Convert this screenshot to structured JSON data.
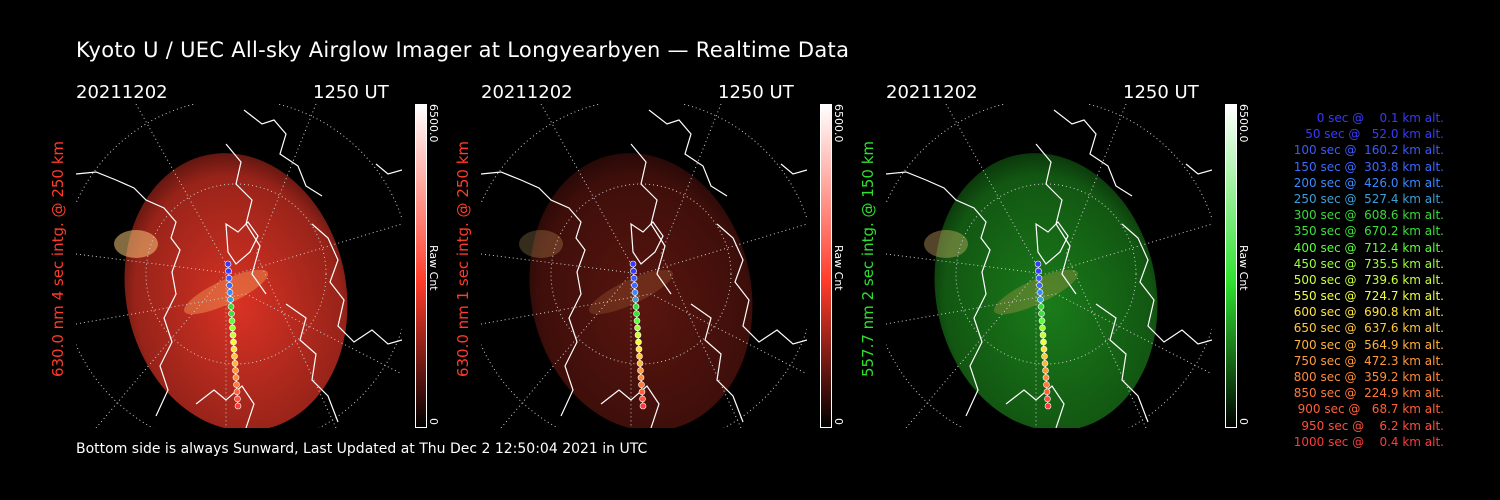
{
  "title": "Kyoto U / UEC All-sky Airglow Imager at Longyearbyen — Realtime Data",
  "panels": [
    {
      "date": "20211202",
      "time": "1250 UT",
      "wavelength_label": "630.0 nm  4 sec intg. @ 250 km",
      "cbar_max": "6500.0",
      "cbar_min": "0",
      "cbar_unit": "Raw Cnt",
      "color": "#ff3b2a",
      "brightness": 0.85
    },
    {
      "date": "20211202",
      "time": "1250 UT",
      "wavelength_label": "630.0 nm  1 sec intg. @ 250 km",
      "cbar_max": "6500.0",
      "cbar_min": "0",
      "cbar_unit": "Raw Cnt",
      "color": "#ff3b2a",
      "brightness": 0.35
    },
    {
      "date": "20211202",
      "time": "1250 UT",
      "wavelength_label": "557.7 nm  2 sec intg. @ 150 km",
      "cbar_max": "6500.0",
      "cbar_min": "0",
      "cbar_unit": "Raw Cnt",
      "color": "#2fe02f",
      "brightness": 0.55
    }
  ],
  "footer": "Bottom side is always Sunward, Last Updated at Thu Dec  2 12:50:04 2021 in UTC",
  "legend": [
    {
      "text": "0 sec @    0.1 km alt.",
      "color": "#3a3aff"
    },
    {
      "text": "50 sec @   52.0 km alt.",
      "color": "#3a3aff"
    },
    {
      "text": "100 sec @  160.2 km alt.",
      "color": "#3a5aff"
    },
    {
      "text": "150 sec @  303.8 km alt.",
      "color": "#3a6aff"
    },
    {
      "text": "200 sec @  426.0 km alt.",
      "color": "#3a8aff"
    },
    {
      "text": "250 sec @  527.4 km alt.",
      "color": "#3aa0d8"
    },
    {
      "text": "300 sec @  608.6 km alt.",
      "color": "#3ad83a"
    },
    {
      "text": "350 sec @  670.2 km alt.",
      "color": "#3ae03a"
    },
    {
      "text": "400 sec @  712.4 km alt.",
      "color": "#5aff3a"
    },
    {
      "text": "450 sec @  735.5 km alt.",
      "color": "#9aff3a"
    },
    {
      "text": "500 sec @  739.6 km alt.",
      "color": "#c8ff3a"
    },
    {
      "text": "550 sec @  724.7 km alt.",
      "color": "#f0ff3a"
    },
    {
      "text": "600 sec @  690.8 km alt.",
      "color": "#ffe23a"
    },
    {
      "text": "650 sec @  637.6 km alt.",
      "color": "#ffc83a"
    },
    {
      "text": "700 sec @  564.9 km alt.",
      "color": "#ffb43a"
    },
    {
      "text": "750 sec @  472.3 km alt.",
      "color": "#ff9a3a"
    },
    {
      "text": "800 sec @  359.2 km alt.",
      "color": "#ff8a3a"
    },
    {
      "text": "850 sec @  224.9 km alt.",
      "color": "#ff7a3a"
    },
    {
      "text": "900 sec @   68.7 km alt.",
      "color": "#ff603a"
    },
    {
      "text": "950 sec @    6.2 km alt.",
      "color": "#ff503a"
    },
    {
      "text": "1000 sec @    0.4 km alt.",
      "color": "#ff3a3a"
    }
  ]
}
